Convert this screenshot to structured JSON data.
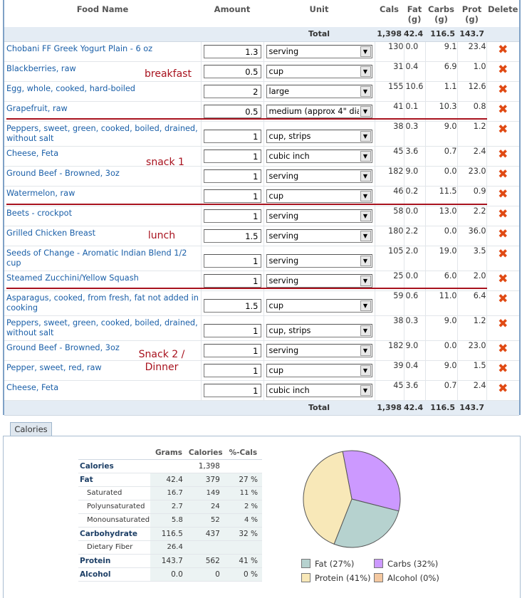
{
  "columns": {
    "food_name": "Food Name",
    "amount": "Amount",
    "unit": "Unit",
    "cals": "Cals",
    "fat": "Fat\n(g)",
    "carbs": "Carbs\n(g)",
    "prot": "Prot\n(g)",
    "delete": "Delete"
  },
  "total_top": {
    "label": "Total",
    "cals": "1,398",
    "fat": "42.4",
    "carbs": "116.5",
    "prot": "143.7"
  },
  "total_bottom": {
    "label": "Total",
    "cals": "1,398",
    "fat": "42.4",
    "carbs": "116.5",
    "prot": "143.7"
  },
  "foods": [
    {
      "name": "Chobani FF Greek Yogurt Plain - 6 oz",
      "amount": "1.3",
      "unit": "serving",
      "cals": "130",
      "fat": "0.0",
      "carbs": "9.1",
      "prot": "23.4"
    },
    {
      "name": "Blackberries, raw",
      "amount": "0.5",
      "unit": "cup",
      "cals": "31",
      "fat": "0.4",
      "carbs": "6.9",
      "prot": "1.0"
    },
    {
      "name": "Egg, whole, cooked, hard-boiled",
      "amount": "2",
      "unit": "large",
      "cals": "155",
      "fat": "10.6",
      "carbs": "1.1",
      "prot": "12.6"
    },
    {
      "name": "Grapefruit, raw",
      "amount": "0.5",
      "unit": "medium (approx 4\" dia",
      "cals": "41",
      "fat": "0.1",
      "carbs": "10.3",
      "prot": "0.8"
    },
    {
      "name": "Peppers, sweet, green, cooked, boiled, drained, without salt",
      "amount": "1",
      "unit": "cup, strips",
      "cals": "38",
      "fat": "0.3",
      "carbs": "9.0",
      "prot": "1.2"
    },
    {
      "name": "Cheese, Feta",
      "amount": "1",
      "unit": "cubic inch",
      "cals": "45",
      "fat": "3.6",
      "carbs": "0.7",
      "prot": "2.4"
    },
    {
      "name": "Ground Beef - Browned, 3oz",
      "amount": "1",
      "unit": "serving",
      "cals": "182",
      "fat": "9.0",
      "carbs": "0.0",
      "prot": "23.0"
    },
    {
      "name": "Watermelon, raw",
      "amount": "1",
      "unit": "cup",
      "cals": "46",
      "fat": "0.2",
      "carbs": "11.5",
      "prot": "0.9"
    },
    {
      "name": "Beets - crockpot",
      "amount": "1",
      "unit": "serving",
      "cals": "58",
      "fat": "0.0",
      "carbs": "13.0",
      "prot": "2.2"
    },
    {
      "name": "Grilled Chicken Breast",
      "amount": "1.5",
      "unit": "serving",
      "cals": "180",
      "fat": "2.2",
      "carbs": "0.0",
      "prot": "36.0"
    },
    {
      "name": "Seeds of Change - Aromatic Indian Blend 1/2 cup",
      "amount": "1",
      "unit": "serving",
      "cals": "105",
      "fat": "2.0",
      "carbs": "19.0",
      "prot": "3.5"
    },
    {
      "name": "Steamed Zucchini/Yellow Squash",
      "amount": "1",
      "unit": "serving",
      "cals": "25",
      "fat": "0.0",
      "carbs": "6.0",
      "prot": "2.0"
    },
    {
      "name": "Asparagus, cooked, from fresh, fat not added in cooking",
      "amount": "1.5",
      "unit": "cup",
      "cals": "59",
      "fat": "0.6",
      "carbs": "11.0",
      "prot": "6.4"
    },
    {
      "name": "Peppers, sweet, green, cooked, boiled, drained, without salt",
      "amount": "1",
      "unit": "cup, strips",
      "cals": "38",
      "fat": "0.3",
      "carbs": "9.0",
      "prot": "1.2"
    },
    {
      "name": "Ground Beef - Browned, 3oz",
      "amount": "1",
      "unit": "serving",
      "cals": "182",
      "fat": "9.0",
      "carbs": "0.0",
      "prot": "23.0"
    },
    {
      "name": "Pepper, sweet, red, raw",
      "amount": "1",
      "unit": "cup",
      "cals": "39",
      "fat": "0.4",
      "carbs": "9.0",
      "prot": "1.5"
    },
    {
      "name": "Cheese, Feta",
      "amount": "1",
      "unit": "cubic inch",
      "cals": "45",
      "fat": "3.6",
      "carbs": "0.7",
      "prot": "2.4"
    }
  ],
  "delete_icon": "x-icon",
  "annotations": {
    "breakfast": "breakfast",
    "snack1": "snack 1",
    "lunch": "lunch",
    "snack2": "Snack 2 /\nDinner",
    "color": "#a8121e"
  },
  "tab_label": "Calories",
  "nutrition": {
    "headers": {
      "grams": "Grams",
      "calories": "Calories",
      "pct": "%-Cals"
    },
    "rows": [
      {
        "label": "Calories",
        "grams": "",
        "calories": "1,398",
        "pct": ""
      },
      {
        "label": "Fat",
        "grams": "42.4",
        "calories": "379",
        "pct": "27 %"
      },
      {
        "label": "Saturated",
        "grams": "16.7",
        "calories": "149",
        "pct": "11 %"
      },
      {
        "label": "Polyunsaturated",
        "grams": "2.7",
        "calories": "24",
        "pct": "2 %"
      },
      {
        "label": "Monounsaturated",
        "grams": "5.8",
        "calories": "52",
        "pct": "4 %"
      },
      {
        "label": "Carbohydrate",
        "grams": "116.5",
        "calories": "437",
        "pct": "32 %"
      },
      {
        "label": "Dietary Fiber",
        "grams": "26.4",
        "calories": "",
        "pct": ""
      },
      {
        "label": "Protein",
        "grams": "143.7",
        "calories": "562",
        "pct": "41 %"
      },
      {
        "label": "Alcohol",
        "grams": "0.0",
        "calories": "0",
        "pct": "0 %"
      }
    ]
  },
  "chart_data": {
    "type": "pie",
    "categories": [
      "Fat",
      "Carbs",
      "Protein",
      "Alcohol"
    ],
    "values": [
      27,
      32,
      41,
      0
    ],
    "colors": [
      "#b6d2cf",
      "#cc99ff",
      "#f8e8b8",
      "#f4c8a0"
    ],
    "legend": [
      "Fat  (27%)",
      "Carbs  (32%)",
      "Protein  (41%)",
      "Alcohol  (0%)"
    ],
    "legend_placement": "bottom"
  }
}
